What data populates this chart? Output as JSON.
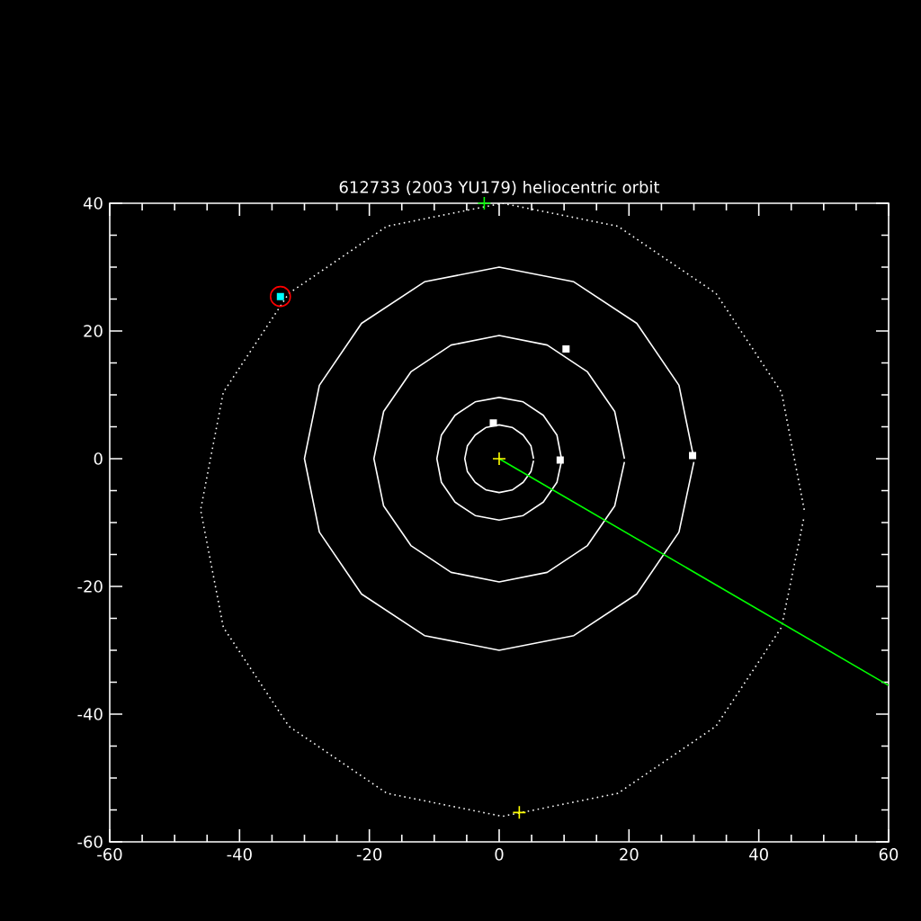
{
  "chart_data": {
    "type": "line",
    "title": "612733 (2003 YU179) heliocentric orbit",
    "xlim": [
      -60,
      60
    ],
    "ylim": [
      -60,
      40
    ],
    "xticks": [
      -60,
      -40,
      -20,
      0,
      20,
      40,
      60
    ],
    "yticks": [
      -60,
      -40,
      -20,
      0,
      20,
      40
    ],
    "grid": false,
    "series": [
      {
        "color": "#ffffff",
        "line_style": "dotted",
        "x": [
          47.0,
          43.5,
          33.4,
          18.3,
          0.5,
          -17.3,
          -32.4,
          -42.5,
          -46.0,
          -42.5,
          -32.4,
          -17.3,
          0.5,
          18.3,
          33.4,
          43.5,
          47.0
        ],
        "values": [
          -8,
          10.4,
          25.9,
          36.4,
          40,
          36.4,
          25.9,
          10.4,
          -8,
          -26.4,
          -41.9,
          -52.4,
          -56,
          -52.4,
          -41.9,
          -26.4,
          -9
        ]
      },
      {
        "color": "#ffffff",
        "line_style": "solid",
        "x": [
          5.3,
          4.9,
          3.7,
          2.0,
          0,
          -2.0,
          -3.7,
          -4.9,
          -5.3,
          -4.9,
          -3.7,
          -2.0,
          0,
          2.0,
          3.7,
          4.9,
          5.3
        ],
        "values": [
          0,
          2.0,
          3.7,
          4.9,
          5.3,
          4.9,
          3.7,
          2.0,
          0,
          -2.0,
          -3.7,
          -4.9,
          -5.3,
          -4.9,
          -3.7,
          -2.0,
          -0.3
        ]
      },
      {
        "color": "#ffffff",
        "line_style": "solid",
        "x": [
          9.6,
          8.9,
          6.8,
          3.7,
          0,
          -3.7,
          -6.8,
          -8.9,
          -9.6,
          -8.9,
          -6.8,
          -3.7,
          0,
          3.7,
          6.8,
          8.9,
          9.6
        ],
        "values": [
          0,
          3.7,
          6.8,
          8.9,
          9.6,
          8.9,
          6.8,
          3.7,
          0,
          -3.7,
          -6.8,
          -8.9,
          -9.6,
          -8.9,
          -6.8,
          -3.7,
          -0.4
        ]
      },
      {
        "color": "#ffffff",
        "line_style": "solid",
        "x": [
          19.3,
          17.8,
          13.6,
          7.4,
          0,
          -7.4,
          -13.6,
          -17.8,
          -19.3,
          -17.8,
          -13.6,
          -7.4,
          0,
          7.4,
          13.6,
          17.8,
          19.3
        ],
        "values": [
          0,
          7.4,
          13.6,
          17.8,
          19.3,
          17.8,
          13.6,
          7.4,
          0,
          -7.4,
          -13.6,
          -17.8,
          -19.3,
          -17.8,
          -13.6,
          -7.4,
          -0.5
        ]
      },
      {
        "color": "#ffffff",
        "line_style": "solid",
        "x": [
          30,
          27.7,
          21.2,
          11.5,
          0,
          -11.5,
          -21.2,
          -27.7,
          -30,
          -27.7,
          -21.2,
          -11.5,
          0,
          11.5,
          21.2,
          27.7,
          30
        ],
        "values": [
          0,
          11.5,
          21.2,
          27.7,
          30,
          27.7,
          21.2,
          11.5,
          0,
          -11.5,
          -21.2,
          -27.7,
          -30,
          -27.7,
          -21.2,
          -11.5,
          -0.5
        ]
      },
      {
        "color": "#00ff00",
        "line_style": "solid",
        "x": [
          0,
          60
        ],
        "values": [
          0,
          -35.5
        ]
      },
      {
        "type": "scatter",
        "color": "#ffffff",
        "marker": "square",
        "x": [
          -0.9,
          9.4,
          10.3,
          29.8
        ],
        "values": [
          5.6,
          -0.2,
          17.2,
          0.5
        ]
      },
      {
        "type": "scatter",
        "color": "#ffff00",
        "marker": "cross",
        "x": [
          0
        ],
        "values": [
          0
        ]
      },
      {
        "type": "scatter",
        "color": "#00ff00",
        "marker": "cross",
        "x": [
          -2.3
        ],
        "values": [
          40
        ]
      },
      {
        "type": "scatter",
        "color": "#ffff00",
        "marker": "cross",
        "x": [
          3.1
        ],
        "values": [
          -55.4
        ]
      },
      {
        "type": "scatter",
        "color": "#00ffff",
        "marker": "square",
        "x": [
          -33.7
        ],
        "values": [
          25.4
        ]
      },
      {
        "type": "scatter",
        "color": "#ff0000",
        "marker": "circle",
        "x": [
          -33.7
        ],
        "values": [
          25.4
        ]
      }
    ]
  }
}
